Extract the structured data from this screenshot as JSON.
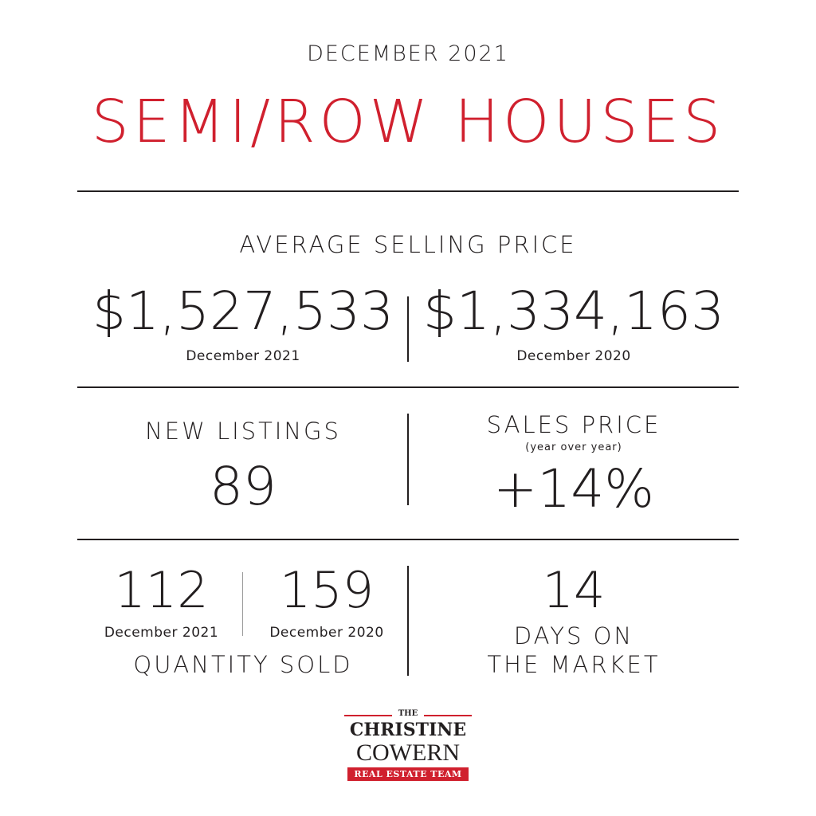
{
  "header": {
    "period": "DECEMBER 2021",
    "title": "SEMI/ROW HOUSES"
  },
  "avg_price": {
    "label": "AVERAGE SELLING PRICE",
    "current_value": "$1,527,533",
    "current_period": "December 2021",
    "previous_value": "$1,334,163",
    "previous_period": "December 2020"
  },
  "new_listings": {
    "label": "NEW LISTINGS",
    "value": "89"
  },
  "sales_price": {
    "label": "SALES PRICE",
    "sublabel": "(year over year)",
    "value": "+14%"
  },
  "quantity_sold": {
    "current_value": "112",
    "current_period": "December 2021",
    "previous_value": "159",
    "previous_period": "December 2020",
    "label": "QUANTITY SOLD"
  },
  "days_on_market": {
    "value": "14",
    "label_line1": "DAYS ON",
    "label_line2": "THE MARKET"
  },
  "logo": {
    "the": "THE",
    "line1": "CHRISTINE",
    "line2": "COWERN",
    "bar": "REAL ESTATE TEAM"
  },
  "colors": {
    "accent": "#d0202e",
    "text": "#231f20",
    "background": "#ffffff"
  }
}
